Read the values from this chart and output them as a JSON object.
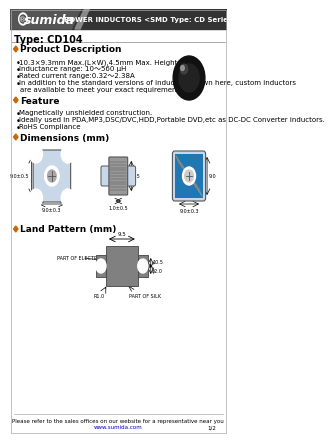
{
  "header_bg": "#333333",
  "header_text_color": "#ffffff",
  "header_title": "POWER INDUCTORS <SMD Type: CD Series>",
  "logo_text": "sumida",
  "type_label": "Type: CD104",
  "body_bg": "#ffffff",
  "product_desc_title": "Product Description",
  "product_desc_bullets": [
    "10.3×9.3mm Max.(L×W),4.5mm Max. Height.",
    "Inductance range: 10～560 μH",
    "Rated current range:0.32～2.38A",
    "In addition to the standard versions of inductors shown here, custom inductors",
    "  are available to meet your exact requirements."
  ],
  "feature_title": "Feature",
  "feature_bullets": [
    "Magnetically unshielded construction.",
    "Ideally used in PDA,MP3,DSC/DVC,HDD,Portable DVD,etc as DC-DC Converter inductors.",
    "RoHS Compliance"
  ],
  "dimensions_title": "Dimensions (mm)",
  "land_pattern_title": "Land Pattern (mm)",
  "footer_text": "Please refer to the sales offices on our website for a representative near you",
  "footer_url": "www.sumida.com",
  "footer_page": "1/2",
  "diamond_color": "#cc6600",
  "diagram_bg": "#c8d8e8",
  "land_pattern_color": "#808080"
}
